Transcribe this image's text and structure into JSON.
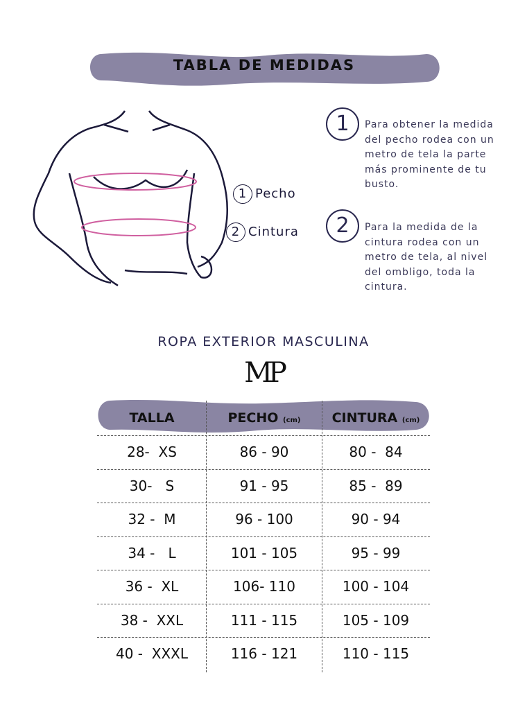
{
  "title": "TABLA DE MEDIDAS",
  "colors": {
    "banner": "#8a85a3",
    "measure_line": "#d060a0",
    "ink": "#1c1a3a"
  },
  "figure_labels": [
    {
      "num": "1",
      "label": "Pecho"
    },
    {
      "num": "2",
      "label": "Cintura"
    }
  ],
  "steps": [
    {
      "num": "1",
      "text": "Para obtener la medida del pecho rodea con un metro de tela la parte más prominente de tu busto."
    },
    {
      "num": "2",
      "text": "Para la medida de la cintura rodea con un metro de tela, al nivel del ombligo, toda la cintura."
    }
  ],
  "section": "ROPA EXTERIOR MASCULINA",
  "logo": "MP",
  "table": {
    "headers": [
      {
        "label": "TALLA",
        "unit": ""
      },
      {
        "label": "PECHO",
        "unit": "(cm)"
      },
      {
        "label": "CINTURA",
        "unit": "(cm)"
      }
    ],
    "rows": [
      [
        "28-  XS",
        "86 - 90",
        "80 -  84"
      ],
      [
        "30-   S",
        "91 - 95",
        "85 -  89"
      ],
      [
        "32 -  M",
        "96 - 100",
        "90 - 94"
      ],
      [
        "34 -   L",
        "101 - 105",
        "95 - 99"
      ],
      [
        "36 -  XL",
        "106- 110",
        "100 - 104"
      ],
      [
        "38 -  XXL",
        "111 - 115",
        "105 - 109"
      ],
      [
        "40 -  XXXL",
        "116 - 121",
        "110 - 115"
      ]
    ]
  }
}
